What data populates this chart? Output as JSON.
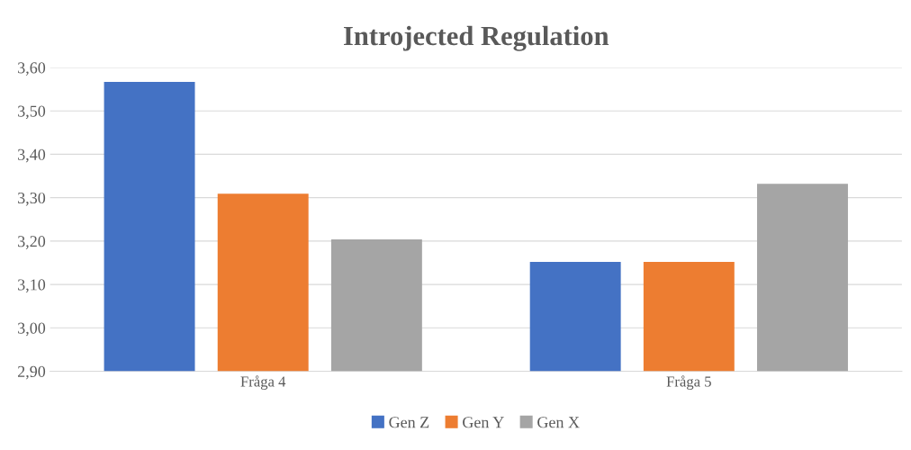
{
  "chart_data": {
    "type": "bar",
    "title": "Introjected Regulation",
    "categories": [
      "Fråga 4",
      "Fråga 5"
    ],
    "series": [
      {
        "name": "Gen Z",
        "color": "#4472c4",
        "values": [
          3.567,
          3.152
        ]
      },
      {
        "name": "Gen Y",
        "color": "#ed7d31",
        "values": [
          3.309,
          3.152
        ]
      },
      {
        "name": "Gen X",
        "color": "#a5a5a5",
        "values": [
          3.204,
          3.332
        ]
      }
    ],
    "ylim": [
      2.9,
      3.6
    ],
    "yticks": [
      {
        "value": 2.9,
        "label": "2,90"
      },
      {
        "value": 3.0,
        "label": "3,00"
      },
      {
        "value": 3.1,
        "label": "3,10"
      },
      {
        "value": 3.2,
        "label": "3,20"
      },
      {
        "value": 3.3,
        "label": "3,30"
      },
      {
        "value": 3.4,
        "label": "3,40"
      },
      {
        "value": 3.5,
        "label": "3,50"
      },
      {
        "value": 3.6,
        "label": "3,60"
      }
    ],
    "grid": "y",
    "legend": "bottom"
  }
}
